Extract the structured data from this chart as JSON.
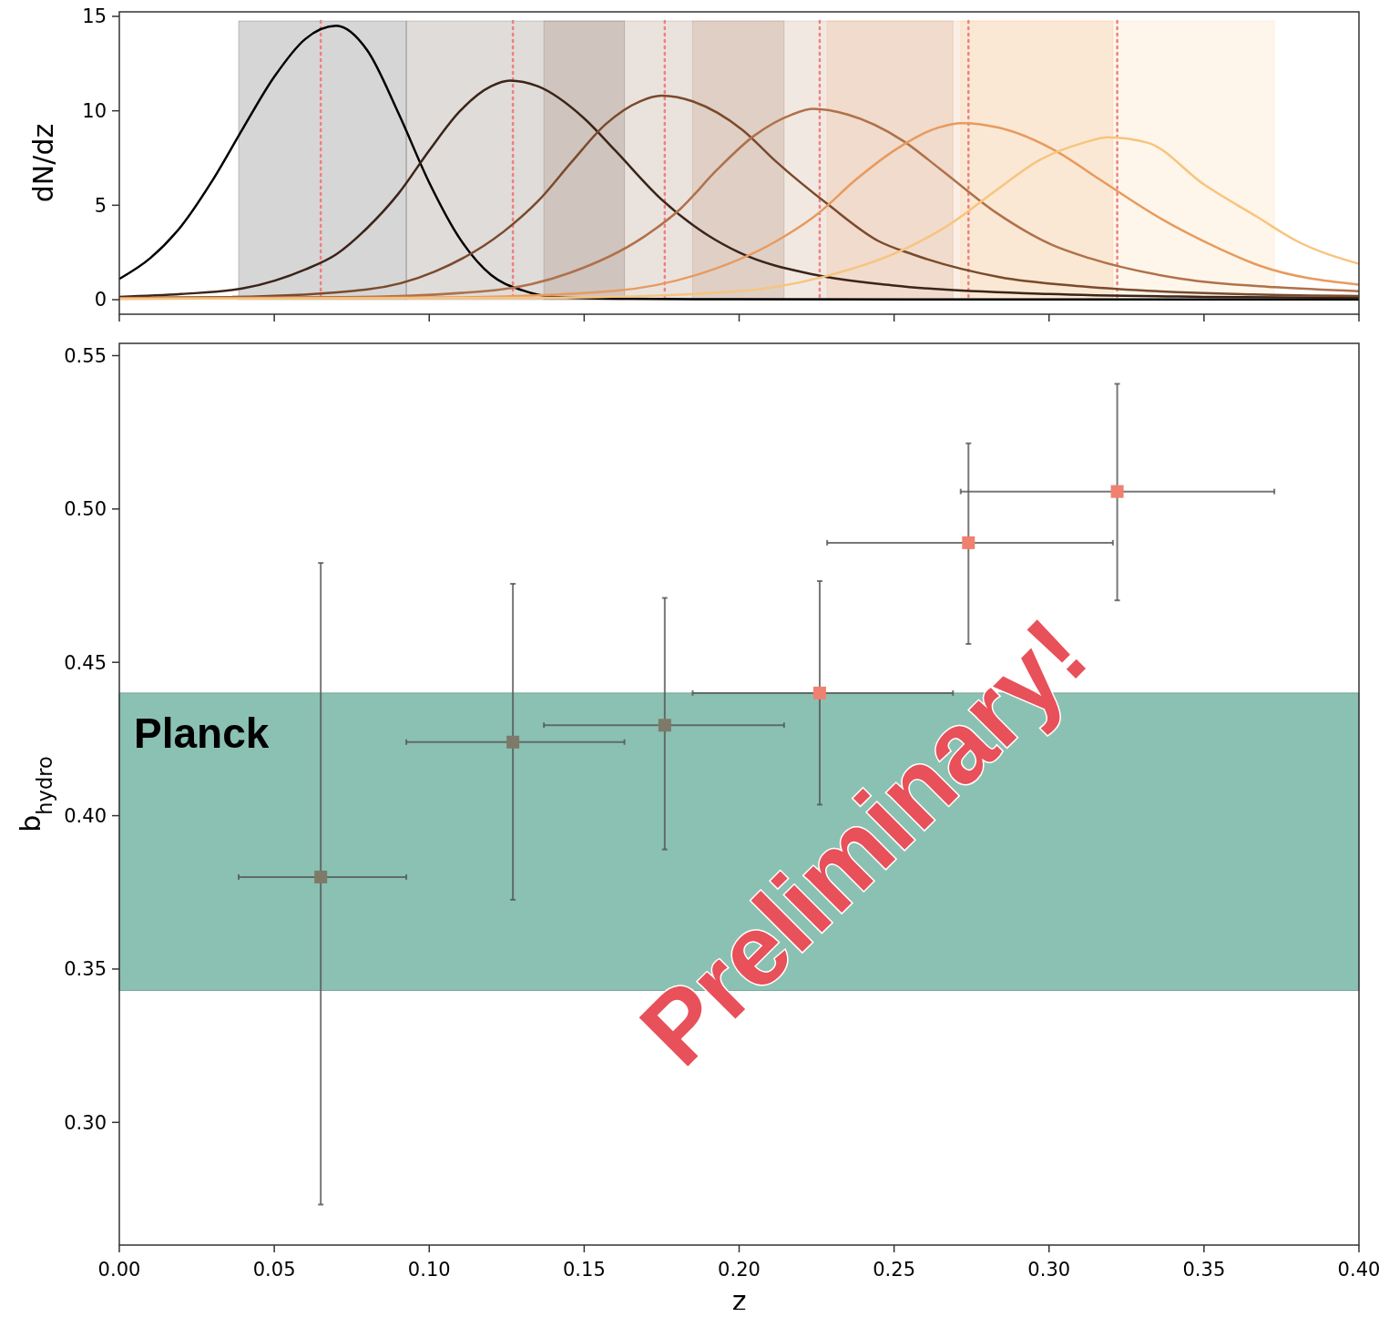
{
  "chart_data": [
    {
      "type": "line",
      "ylabel": "dN/dz",
      "xlim": [
        0,
        0.4
      ],
      "ylim": [
        -0.77,
        15.24
      ],
      "xticks": [
        0,
        0.05,
        0.1,
        0.15,
        0.2,
        0.25,
        0.3,
        0.35,
        0.4
      ],
      "yticks": [
        0,
        5,
        10,
        15
      ],
      "tick_labels": "y",
      "grid": false,
      "marker": "none",
      "series": [
        {
          "color": "#000000",
          "x": [
            0,
            0.01,
            0.02,
            0.03,
            0.04,
            0.05,
            0.06,
            0.07,
            0.08,
            0.09,
            0.1,
            0.11,
            0.12,
            0.13,
            0.14,
            0.16,
            0.2,
            0.3,
            0.4
          ],
          "values": [
            1.1,
            2.2,
            3.9,
            6.3,
            9.1,
            11.8,
            13.8,
            14.5,
            13.2,
            9.9,
            6.2,
            3.2,
            1.3,
            0.5,
            0.15,
            0.05,
            0.02,
            0.01,
            0.01
          ]
        },
        {
          "color": "#3b2418",
          "x": [
            0,
            0.02,
            0.04,
            0.06,
            0.07,
            0.08,
            0.09,
            0.1,
            0.11,
            0.12,
            0.126,
            0.135,
            0.15,
            0.16,
            0.175,
            0.19,
            0.2,
            0.225,
            0.25,
            0.3,
            0.35,
            0.4
          ],
          "values": [
            0.15,
            0.3,
            0.6,
            1.6,
            2.4,
            3.8,
            5.6,
            7.9,
            10,
            11.3,
            11.6,
            11.3,
            9.6,
            7.9,
            5.3,
            3.4,
            2.5,
            1.3,
            0.75,
            0.3,
            0.15,
            0.1
          ]
        },
        {
          "color": "#7a4a2c",
          "x": [
            0,
            0.036,
            0.08,
            0.102,
            0.124,
            0.135,
            0.146,
            0.157,
            0.168,
            0.175,
            0.185,
            0.201,
            0.212,
            0.229,
            0.245,
            0.256,
            0.284,
            0.311,
            0.366,
            0.4
          ],
          "values": [
            0.1,
            0.14,
            0.54,
            1.5,
            3.6,
            5.2,
            7.3,
            9.3,
            10.5,
            10.8,
            10.5,
            9,
            7.3,
            5,
            3.1,
            2.4,
            1.2,
            0.7,
            0.28,
            0.2
          ]
        },
        {
          "color": "#b0714a",
          "x": [
            0,
            0.073,
            0.121,
            0.145,
            0.169,
            0.181,
            0.193,
            0.205,
            0.217,
            0.224,
            0.235,
            0.253,
            0.265,
            0.283,
            0.301,
            0.313,
            0.343,
            0.373,
            0.4
          ],
          "values": [
            0.08,
            0.13,
            0.5,
            1.4,
            3.3,
            4.8,
            6.9,
            8.7,
            9.8,
            10.1,
            9.8,
            8.4,
            6.9,
            4.6,
            2.9,
            2.2,
            1.1,
            0.66,
            0.45
          ]
        },
        {
          "color": "#e89a5e",
          "x": [
            0,
            0.05,
            0.108,
            0.16,
            0.186,
            0.212,
            0.225,
            0.238,
            0.251,
            0.264,
            0.272,
            0.284,
            0.303,
            0.316,
            0.336,
            0.355,
            0.368,
            0.4
          ],
          "values": [
            0.05,
            0.07,
            0.12,
            0.47,
            1.3,
            3.1,
            4.5,
            6.4,
            8,
            9.1,
            9.35,
            9.1,
            7.8,
            6.4,
            4.3,
            2.7,
            1.8,
            0.8
          ]
        },
        {
          "color": "#f8c47e",
          "x": [
            0,
            0.1,
            0.143,
            0.199,
            0.227,
            0.255,
            0.269,
            0.283,
            0.297,
            0.311,
            0.319,
            0.332,
            0.35,
            0.367,
            0.38,
            0.4
          ],
          "values": [
            0.05,
            0.08,
            0.11,
            0.43,
            1.2,
            2.8,
            4.1,
            5.8,
            7.4,
            8.3,
            8.6,
            8.3,
            6.1,
            4.4,
            3.1,
            1.9
          ]
        }
      ],
      "bands": [
        {
          "axis": "x",
          "from": 0.0385,
          "to": 0.0926,
          "color": "#000000"
        },
        {
          "axis": "x",
          "from": 0.0926,
          "to": 0.163,
          "color": "#3b2418"
        },
        {
          "axis": "x",
          "from": 0.137,
          "to": 0.2145,
          "color": "#7a4a2c"
        },
        {
          "axis": "x",
          "from": 0.185,
          "to": 0.269,
          "color": "#b0714a"
        },
        {
          "axis": "x",
          "from": 0.2284,
          "to": 0.3206,
          "color": "#e89a5e"
        },
        {
          "axis": "x",
          "from": 0.2715,
          "to": 0.3727,
          "color": "#f8c47e"
        }
      ],
      "ref_lines": [
        {
          "axis": "x",
          "value": 0.065,
          "color": "#f08080",
          "line_style": "dotted"
        },
        {
          "axis": "x",
          "value": 0.127,
          "color": "#f08080",
          "line_style": "dotted"
        },
        {
          "axis": "x",
          "value": 0.176,
          "color": "#f08080",
          "line_style": "dotted"
        },
        {
          "axis": "x",
          "value": 0.226,
          "color": "#f08080",
          "line_style": "dotted"
        },
        {
          "axis": "x",
          "value": 0.274,
          "color": "#f08080",
          "line_style": "dotted"
        },
        {
          "axis": "x",
          "value": 0.322,
          "color": "#f08080",
          "line_style": "dotted"
        }
      ]
    },
    {
      "type": "scatter",
      "xlabel": "z",
      "ylabel": "b$_{hydro}$",
      "xlim": [
        0,
        0.4
      ],
      "ylim": [
        0.26,
        0.554
      ],
      "xticks": [
        {
          "value": 0,
          "label": "0.00"
        },
        {
          "value": 0.05,
          "label": "0.05"
        },
        {
          "value": 0.1,
          "label": "0.10"
        },
        {
          "value": 0.15,
          "label": "0.15"
        },
        {
          "value": 0.2,
          "label": "0.20"
        },
        {
          "value": 0.25,
          "label": "0.25"
        },
        {
          "value": 0.3,
          "label": "0.30"
        },
        {
          "value": 0.35,
          "label": "0.35"
        },
        {
          "value": 0.4,
          "label": "0.40"
        }
      ],
      "yticks": [
        {
          "value": 0.3,
          "label": "0.30"
        },
        {
          "value": 0.35,
          "label": "0.35"
        },
        {
          "value": 0.4,
          "label": "0.40"
        },
        {
          "value": 0.45,
          "label": "0.45"
        },
        {
          "value": 0.5,
          "label": "0.50"
        },
        {
          "value": 0.55,
          "label": "0.55"
        }
      ],
      "grid": false,
      "marker": "square",
      "series": [
        {
          "x": [
            0.065,
            0.127,
            0.176,
            0.226,
            0.274,
            0.322
          ],
          "values": [
            0.38,
            0.424,
            0.4295,
            0.44,
            0.489,
            0.5057
          ],
          "colors": [
            "#7d7a69",
            "#7d7a69",
            "#7d7a69",
            "#f08070",
            "#f08070",
            "#f08070"
          ],
          "errors": [
            [
              0.2732,
              0.4824
            ],
            [
              0.3726,
              0.4756
            ],
            [
              0.389,
              0.471
            ],
            [
              0.4036,
              0.4765
            ],
            [
              0.456,
              0.5214
            ],
            [
              0.4702,
              0.5408
            ]
          ],
          "xerrors": [
            [
              0.0385,
              0.0926
            ],
            [
              0.0926,
              0.163
            ],
            [
              0.137,
              0.2145
            ],
            [
              0.185,
              0.269
            ],
            [
              0.2284,
              0.3206
            ],
            [
              0.2715,
              0.3727
            ]
          ]
        }
      ],
      "bands": [
        {
          "axis": "y",
          "from": 0.343,
          "to": 0.44,
          "label": "Planck",
          "color": "#8bc1b2"
        }
      ],
      "annotations": [
        "Preliminary!"
      ]
    }
  ]
}
